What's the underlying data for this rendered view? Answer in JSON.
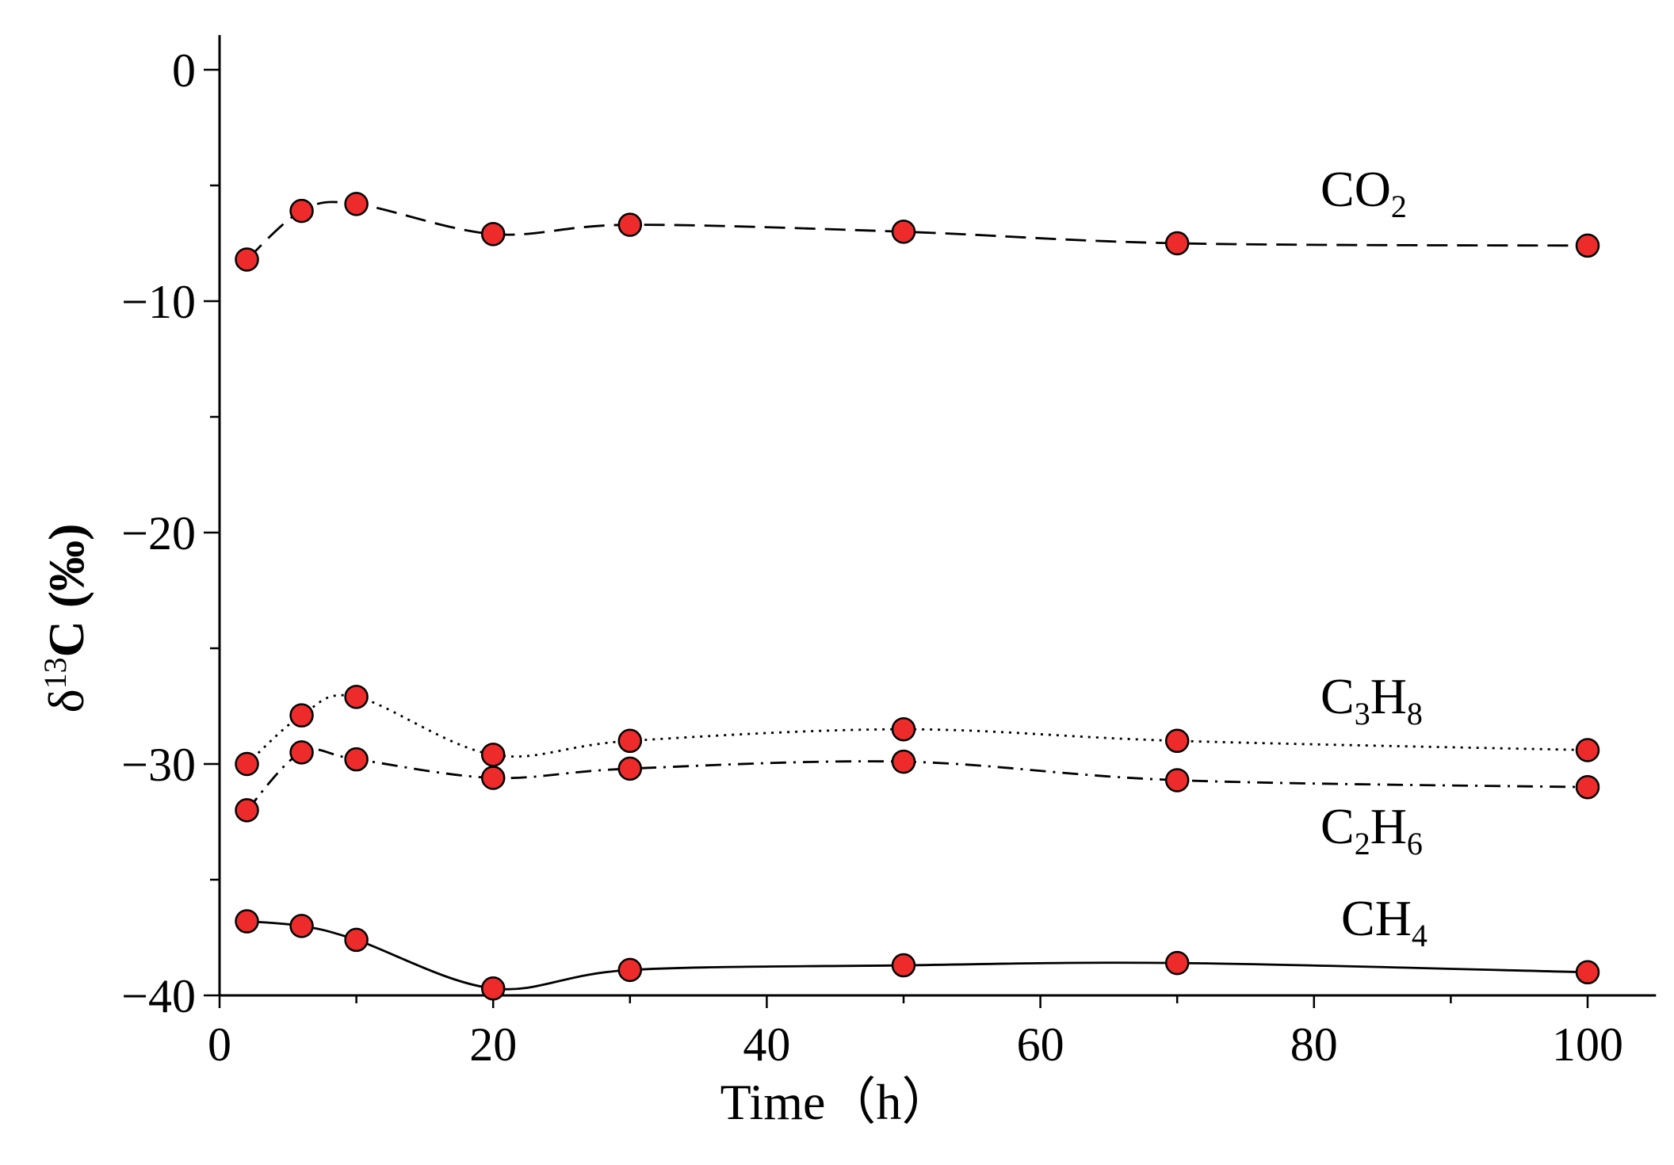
{
  "chart_data": {
    "type": "line",
    "title": "",
    "xlabel": "Time（h）",
    "ylabel": "δ¹³C (‰)",
    "ylabel_parts": {
      "delta": "δ",
      "sup": "13",
      "rest": "C (‰)"
    },
    "xlim": [
      0,
      105
    ],
    "ylim": [
      -40,
      1.5
    ],
    "x_ticks": [
      0,
      20,
      40,
      60,
      80,
      100
    ],
    "x_tick_labels": [
      "0",
      "20",
      "40",
      "60",
      "80",
      "100"
    ],
    "y_ticks": [
      0,
      -10,
      -20,
      -30,
      -40
    ],
    "y_tick_labels": [
      "0",
      "−10",
      "−20",
      "−30",
      "−40"
    ],
    "grid": false,
    "marker_color": "#ee2b2b",
    "line_color": "#000000",
    "x": [
      2,
      6,
      10,
      20,
      30,
      50,
      70,
      100
    ],
    "series": [
      {
        "name": "CO2",
        "label_main": "CO",
        "label_parts": [
          {
            "t": "CO",
            "sub": false
          },
          {
            "t": "2",
            "sub": true
          }
        ],
        "style": "dashed",
        "values": [
          -8.2,
          -6.1,
          -5.8,
          -7.1,
          -6.7,
          -7.0,
          -7.5,
          -7.6
        ]
      },
      {
        "name": "C3H8",
        "label_parts": [
          {
            "t": "C",
            "sub": false
          },
          {
            "t": "3",
            "sub": true
          },
          {
            "t": "H",
            "sub": false
          },
          {
            "t": "8",
            "sub": true
          }
        ],
        "style": "dotted",
        "values": [
          -30.0,
          -27.9,
          -27.1,
          -29.6,
          -29.0,
          -28.5,
          -29.0,
          -29.4
        ]
      },
      {
        "name": "C2H6",
        "label_parts": [
          {
            "t": "C",
            "sub": false
          },
          {
            "t": "2",
            "sub": true
          },
          {
            "t": "H",
            "sub": false
          },
          {
            "t": "6",
            "sub": true
          }
        ],
        "style": "dashdot",
        "values": [
          -32.0,
          -29.5,
          -29.8,
          -30.6,
          -30.2,
          -29.9,
          -30.7,
          -31.0
        ]
      },
      {
        "name": "CH4",
        "label_parts": [
          {
            "t": "CH",
            "sub": false
          },
          {
            "t": "4",
            "sub": true
          }
        ],
        "style": "solid",
        "values": [
          -36.8,
          -37.0,
          -37.6,
          -39.7,
          -38.9,
          -38.7,
          -38.6,
          -39.0
        ]
      }
    ]
  }
}
